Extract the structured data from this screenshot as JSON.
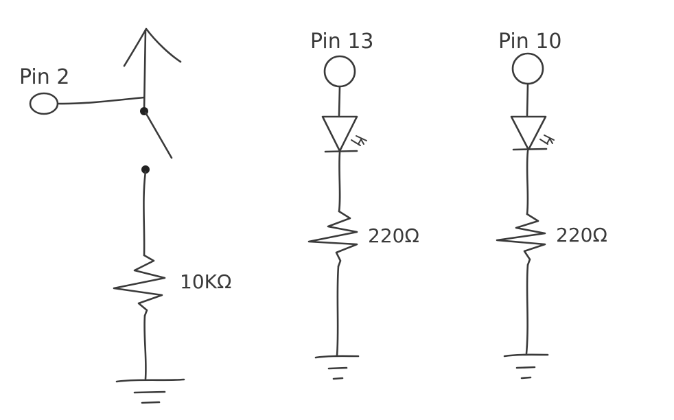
{
  "circuits": [
    {
      "pin_label": "Pin 2",
      "components": [
        "switch",
        "resistor"
      ],
      "resistor_value": "10KΩ"
    },
    {
      "pin_label": "Pin 13",
      "components": [
        "led",
        "resistor"
      ],
      "resistor_value": "220Ω"
    },
    {
      "pin_label": "Pin 10",
      "components": [
        "led",
        "resistor"
      ],
      "resistor_value": "220Ω"
    }
  ],
  "colors": {
    "ink": "#3a3a3a",
    "background": "#ffffff"
  }
}
